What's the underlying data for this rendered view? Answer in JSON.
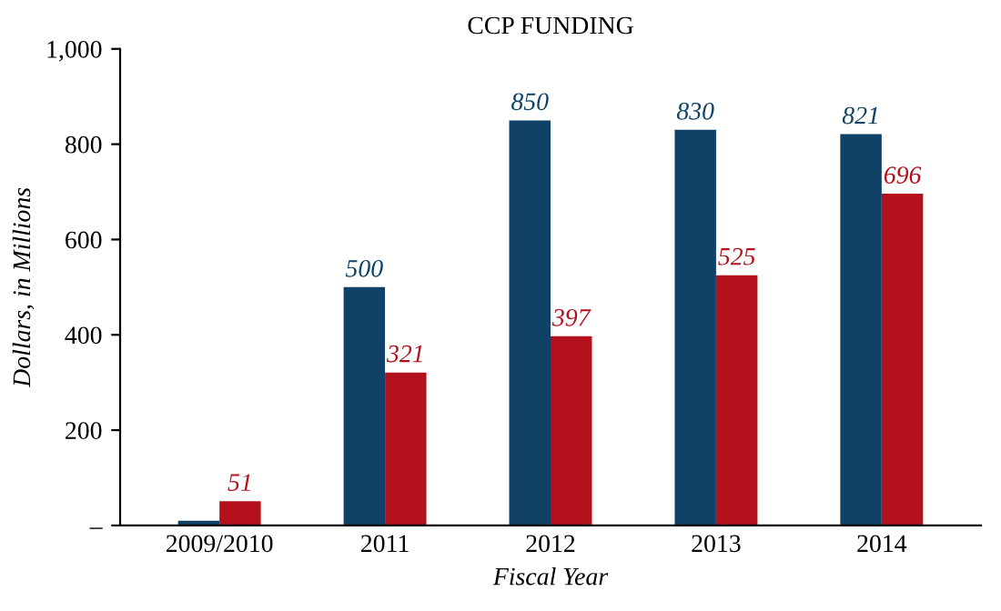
{
  "chart_data": {
    "type": "bar",
    "title": "CCP FUNDING",
    "xlabel": "Fiscal Year",
    "ylabel": "Dollars, in Millions",
    "categories": [
      "2009/2010",
      "2011",
      "2012",
      "2013",
      "2014"
    ],
    "series": [
      {
        "color": "#0f4266",
        "values": [
          10,
          500,
          850,
          830,
          821
        ],
        "value_labels": [
          null,
          "500",
          "850",
          "830",
          "821"
        ]
      },
      {
        "color": "#b3121c",
        "values": [
          51,
          321,
          397,
          525,
          696
        ],
        "value_labels": [
          "51",
          "321",
          "397",
          "525",
          "696"
        ]
      }
    ],
    "ylim": [
      0,
      1000
    ],
    "yticks": [
      {
        "value": 0,
        "label": "–"
      },
      200,
      400,
      600,
      800,
      {
        "value": 1000,
        "label": "1,000"
      }
    ],
    "grid": false
  }
}
